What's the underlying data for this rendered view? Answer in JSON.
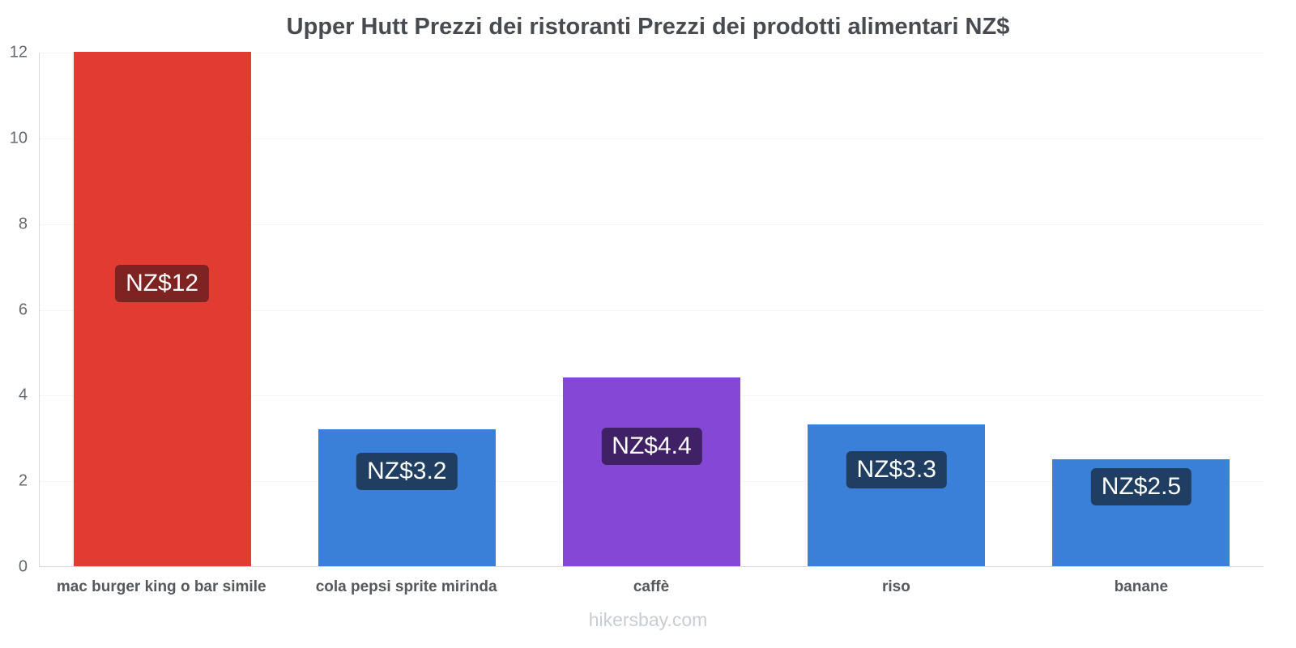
{
  "page": {
    "footer": "hikersbay.com"
  },
  "chart_data": {
    "type": "bar",
    "title": "Upper Hutt Prezzi dei ristoranti Prezzi dei prodotti alimentari NZ$",
    "categories": [
      "mac burger king o bar simile",
      "cola pepsi sprite mirinda",
      "caffè",
      "riso",
      "banane"
    ],
    "values": [
      12,
      3.2,
      4.4,
      3.3,
      2.5
    ],
    "value_labels": [
      "NZ$12",
      "NZ$3.2",
      "NZ$4.4",
      "NZ$3.3",
      "NZ$2.5"
    ],
    "bar_colors": [
      "#e13b32",
      "#3b80d8",
      "#8547d6",
      "#3b80d8",
      "#3b80d8"
    ],
    "label_colors": [
      "#7e2321",
      "#1f3e61",
      "#412165",
      "#1f3e61",
      "#1f3e61"
    ],
    "xlabel": "",
    "ylabel": "",
    "ylim": [
      0,
      12
    ],
    "yticks": [
      0,
      2,
      4,
      6,
      8,
      10,
      12
    ],
    "legend": "none",
    "grid": "faint-horizontal"
  }
}
